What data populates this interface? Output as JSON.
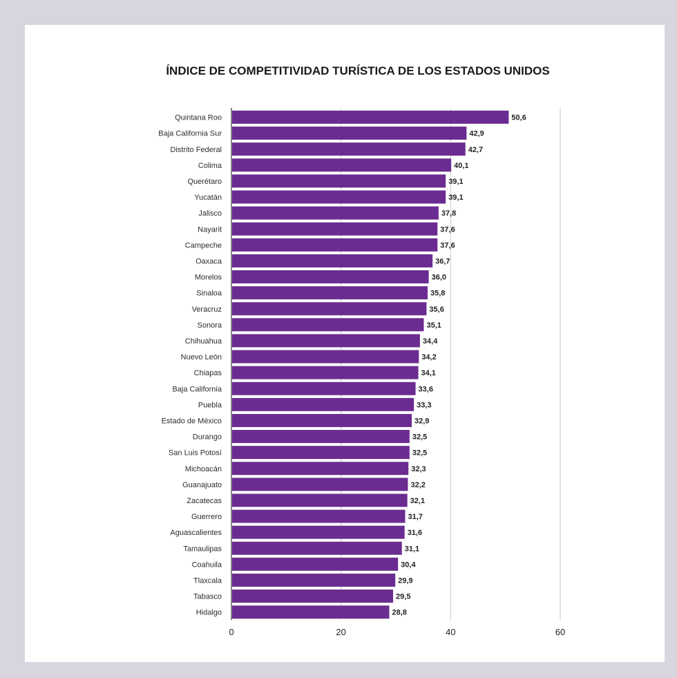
{
  "colors": {
    "bar": "#6b2c91",
    "grid": "#c6c6c6",
    "axis": "#333333",
    "background": "#ffffff",
    "frame": "#d9d5df"
  },
  "chart_data": {
    "type": "bar",
    "orientation": "horizontal",
    "title": "ÍNDICE DE COMPETITIVIDAD TURÍSTICA DE LOS ESTADOS UNIDOS",
    "xlabel": "",
    "ylabel": "",
    "xlim": [
      0,
      60
    ],
    "xticks": [
      0,
      20,
      40,
      60
    ],
    "grid": true,
    "legend": "none",
    "categories": [
      "Quintana Roo",
      "Baja California Sur",
      "Distrito Federal",
      "Colima",
      "Querétaro",
      "Yucatán",
      "Jalisco",
      "Nayarit",
      "Campeche",
      "Oaxaca",
      "Morelos",
      "Sinaloa",
      "Veracruz",
      "Sonora",
      "Chihuahua",
      "Nuevo León",
      "Chiapas",
      "Baja California",
      "Puebla",
      "Estado de México",
      "Durango",
      "San Luis Potosí",
      "Michoacán",
      "Guanajuato",
      "Zacatecas",
      "Guerrero",
      "Aguascalientes",
      "Tamaulipas",
      "Coahuila",
      "Tlaxcala",
      "Tabasco",
      "Hidalgo"
    ],
    "values": [
      50.6,
      42.9,
      42.7,
      40.1,
      39.1,
      39.1,
      37.8,
      37.6,
      37.6,
      36.7,
      36.0,
      35.8,
      35.6,
      35.1,
      34.4,
      34.2,
      34.1,
      33.6,
      33.3,
      32.9,
      32.5,
      32.5,
      32.3,
      32.2,
      32.1,
      31.7,
      31.6,
      31.1,
      30.4,
      29.9,
      29.5,
      28.8
    ],
    "value_labels": [
      "50,6",
      "42,9",
      "42,7",
      "40,1",
      "39,1",
      "39,1",
      "37,8",
      "37,6",
      "37,6",
      "36,7",
      "36,0",
      "35,8",
      "35,6",
      "35,1",
      "34,4",
      "34,2",
      "34,1",
      "33,6",
      "33,3",
      "32,9",
      "32,5",
      "32,5",
      "32,3",
      "32,2",
      "32,1",
      "31,7",
      "31,6",
      "31,1",
      "30,4",
      "29,9",
      "29,5",
      "28,8"
    ]
  }
}
